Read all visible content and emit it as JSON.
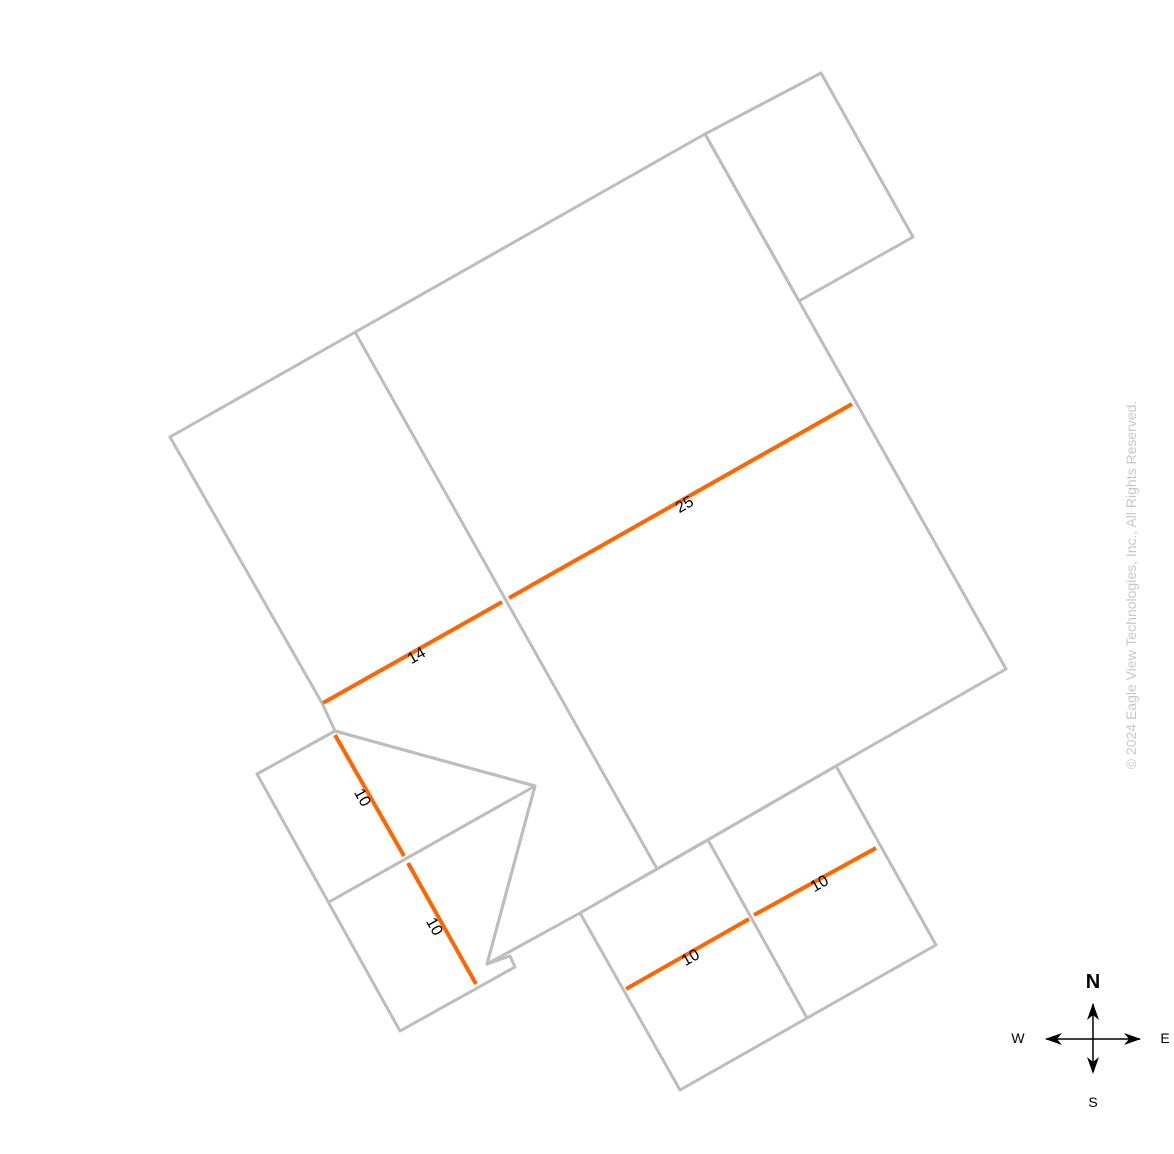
{
  "colors": {
    "outline": "#bdbdbd",
    "ridge": "#ff6600",
    "label_text": "#000000",
    "watermark": "#c8c8c8",
    "background": "#ffffff"
  },
  "ridge_labels": [
    "25",
    "14",
    "10",
    "10",
    "10",
    "10"
  ],
  "compass": {
    "north": "N",
    "south": "S",
    "east": "E",
    "west": "W",
    "icon": "compass-rose-icon"
  },
  "watermark": "© 2024 Eagle View Technologies, Inc., All Rights Reserved."
}
